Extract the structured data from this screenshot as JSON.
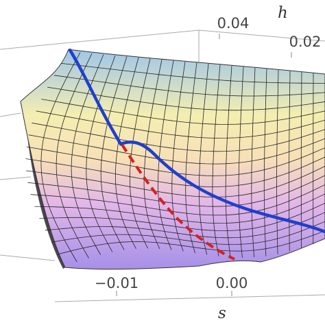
{
  "chart_data": {
    "type": "surface3d",
    "xlabel": "s",
    "ylabel": "h",
    "xticks": [
      {
        "value": -0.01,
        "label": "−0.01"
      },
      {
        "value": 0,
        "label": "0.00"
      }
    ],
    "yticks": [
      0.04,
      0.02
    ]
  }
}
